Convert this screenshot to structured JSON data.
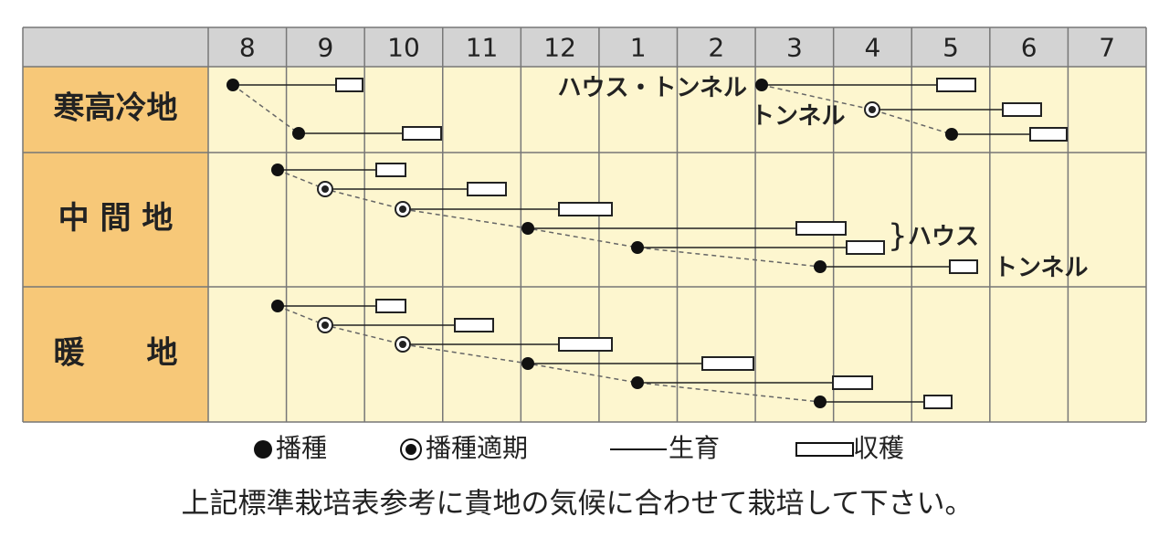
{
  "header": {
    "months": [
      8,
      9,
      10,
      11,
      12,
      1,
      2,
      3,
      4,
      5,
      6,
      7
    ]
  },
  "rows": [
    {
      "label": "寒高冷地"
    },
    {
      "label": "中 間 地"
    },
    {
      "label": "暖　　地"
    }
  ],
  "annotations": [
    "ハウス・トンネル",
    "トンネル",
    "}",
    "ハウス",
    "トンネル"
  ],
  "legend": [
    "播種",
    "播種適期",
    "生育",
    "収穫"
  ],
  "footer": "上記標準栽培表参考に貴地の気候に合わせて栽培して下さい。"
}
